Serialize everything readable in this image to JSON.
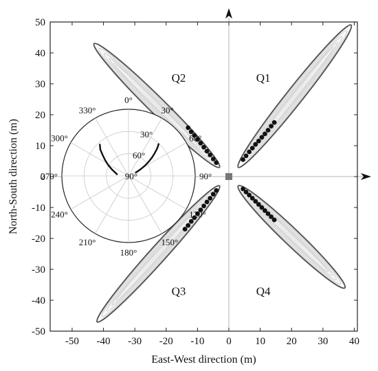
{
  "chart_data": {
    "type": "scatter",
    "title": "",
    "xlabel": "East-West direction (m)",
    "ylabel": "North-South direction (m)",
    "xlim": [
      -57,
      41
    ],
    "ylim": [
      -50,
      50
    ],
    "x_ticks": [
      -50,
      -40,
      -30,
      -20,
      -10,
      0,
      10,
      20,
      30,
      40
    ],
    "y_ticks": [
      -50,
      -40,
      -30,
      -20,
      -10,
      0,
      10,
      20,
      30,
      40,
      50
    ],
    "grid": false,
    "center_marker": {
      "x": 0,
      "y": 0
    },
    "quadrant_labels": [
      {
        "text": "Q1",
        "x": 11,
        "y": 32
      },
      {
        "text": "Q2",
        "x": -16,
        "y": 32
      },
      {
        "text": "Q3",
        "x": -16,
        "y": -37
      },
      {
        "text": "Q4",
        "x": 11,
        "y": -37
      }
    ],
    "lobes": [
      {
        "quadrant": "Q1",
        "from": [
          3,
          3
        ],
        "to": [
          39,
          49
        ],
        "half_width": 2.6
      },
      {
        "quadrant": "Q2",
        "from": [
          -3,
          3
        ],
        "to": [
          -43,
          43
        ],
        "half_width": 2.6
      },
      {
        "quadrant": "Q3",
        "from": [
          -3,
          -3
        ],
        "to": [
          -42,
          -47
        ],
        "half_width": 2.6
      },
      {
        "quadrant": "Q4",
        "from": [
          3,
          -3
        ],
        "to": [
          37,
          -36
        ],
        "half_width": 2.6
      }
    ],
    "series": [
      {
        "points": [
          [
            4.5,
            5.5
          ],
          [
            5.5,
            6.7
          ],
          [
            6.5,
            8
          ],
          [
            7.5,
            9.2
          ],
          [
            8.5,
            10.4
          ],
          [
            9.5,
            11.5
          ],
          [
            10.5,
            12.7
          ],
          [
            11.5,
            13.8
          ],
          [
            12.5,
            15
          ],
          [
            13.5,
            16.3
          ],
          [
            14.5,
            17.5
          ]
        ]
      },
      {
        "points": [
          [
            -4,
            4.5
          ],
          [
            -5,
            5.7
          ],
          [
            -6,
            7
          ],
          [
            -7,
            8.2
          ],
          [
            -8,
            9.5
          ],
          [
            -9,
            10.8
          ],
          [
            -10,
            12
          ],
          [
            -11,
            13.3
          ],
          [
            -12,
            14.5
          ],
          [
            -13,
            15.8
          ]
        ]
      },
      {
        "points": [
          [
            -4,
            -4.5
          ],
          [
            -5,
            -5.7
          ],
          [
            -6,
            -7
          ],
          [
            -7,
            -8.2
          ],
          [
            -8,
            -9.5
          ],
          [
            -9,
            -10.8
          ],
          [
            -10,
            -12
          ],
          [
            -11,
            -13.3
          ],
          [
            -12,
            -14.5
          ],
          [
            -13,
            -15.8
          ],
          [
            -14,
            -17
          ]
        ]
      },
      {
        "points": [
          [
            4.5,
            -4
          ],
          [
            5.5,
            -5
          ],
          [
            6.5,
            -6
          ],
          [
            7.5,
            -7
          ],
          [
            8.5,
            -8
          ],
          [
            9.5,
            -9
          ],
          [
            10.5,
            -10
          ],
          [
            11.5,
            -11
          ],
          [
            12.5,
            -12
          ],
          [
            13.5,
            -13
          ],
          [
            14.5,
            -14
          ]
        ]
      }
    ],
    "polar_inset": {
      "type": "polar",
      "angle_labels": [
        "0°",
        "30°",
        "60°",
        "90°",
        "120°",
        "150°",
        "180°",
        "210°",
        "240°",
        "270°",
        "300°",
        "330°"
      ],
      "radial_labels": [
        "30°",
        "60°",
        "90°"
      ],
      "traces": [
        {
          "points": [
            [
              43,
              30
            ],
            [
              46,
              36
            ],
            [
              49,
              43
            ],
            [
              52,
              50
            ],
            [
              55,
              57
            ],
            [
              58,
              64
            ],
            [
              61,
              71
            ],
            [
              64,
              77
            ],
            [
              66,
              80
            ]
          ]
        },
        {
          "points": [
            [
              318,
              32
            ],
            [
              313,
              38
            ],
            [
              309,
              45
            ],
            [
              304,
              52
            ],
            [
              298,
              59
            ],
            [
              291,
              66
            ],
            [
              283,
              72
            ],
            [
              276,
              75
            ]
          ]
        }
      ]
    }
  }
}
